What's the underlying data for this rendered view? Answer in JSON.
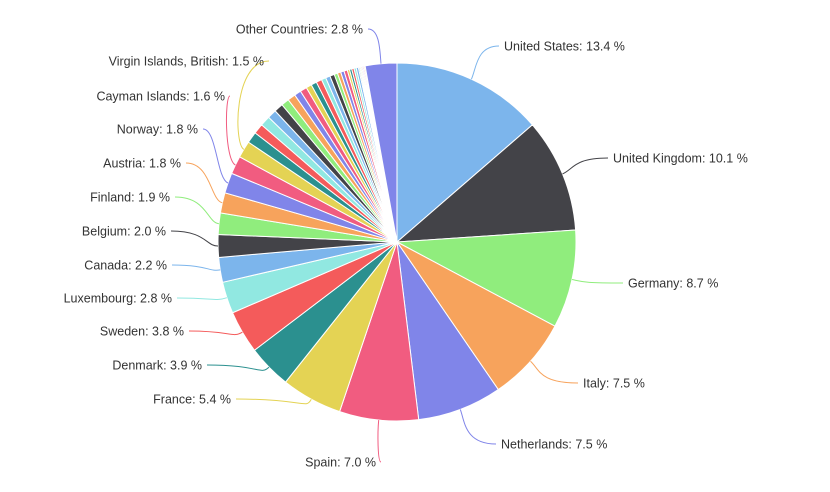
{
  "chart_data": {
    "type": "pie",
    "title": "",
    "labeled_slices": [
      {
        "name": "United States",
        "value": 13.4,
        "label": "United States: 13.4 %",
        "color": "#7cb5ec"
      },
      {
        "name": "United Kingdom",
        "value": 10.1,
        "label": "United Kingdom: 10.1 %",
        "color": "#434348"
      },
      {
        "name": "Germany",
        "value": 8.7,
        "label": "Germany: 8.7 %",
        "color": "#90ed7d"
      },
      {
        "name": "Italy",
        "value": 7.5,
        "label": "Italy: 7.5 %",
        "color": "#f7a35c"
      },
      {
        "name": "Netherlands",
        "value": 7.5,
        "label": "Netherlands: 7.5 %",
        "color": "#8085e9"
      },
      {
        "name": "Spain",
        "value": 7.0,
        "label": "Spain: 7.0 %",
        "color": "#f15c80"
      },
      {
        "name": "France",
        "value": 5.4,
        "label": "France: 5.4 %",
        "color": "#e4d354"
      },
      {
        "name": "Denmark",
        "value": 3.9,
        "label": "Denmark: 3.9 %",
        "color": "#2b908f"
      },
      {
        "name": "Sweden",
        "value": 3.8,
        "label": "Sweden: 3.8 %",
        "color": "#f45b5b"
      },
      {
        "name": "Luxembourg",
        "value": 2.8,
        "label": "Luxembourg: 2.8 %",
        "color": "#91e8e1"
      },
      {
        "name": "Canada",
        "value": 2.2,
        "label": "Canada: 2.2 %",
        "color": "#7cb5ec"
      },
      {
        "name": "Belgium",
        "value": 2.0,
        "label": "Belgium: 2.0 %",
        "color": "#434348"
      },
      {
        "name": "Finland",
        "value": 1.9,
        "label": "Finland: 1.9 %",
        "color": "#90ed7d"
      },
      {
        "name": "Austria",
        "value": 1.8,
        "label": "Austria: 1.8 %",
        "color": "#f7a35c"
      },
      {
        "name": "Norway",
        "value": 1.8,
        "label": "Norway: 1.8 %",
        "color": "#8085e9"
      },
      {
        "name": "Cayman Islands",
        "value": 1.6,
        "label": "Cayman Islands: 1.6 %",
        "color": "#f15c80"
      },
      {
        "name": "Virgin Islands, British",
        "value": 1.5,
        "label": "Virgin Islands, British: 1.5 %",
        "color": "#e4d354"
      }
    ],
    "unlabeled_small_slices": [
      1.0,
      0.9,
      0.9,
      0.8,
      0.8,
      0.7,
      0.7,
      0.6,
      0.6,
      0.5,
      0.5,
      0.5,
      0.4,
      0.4,
      0.4,
      0.3,
      0.3,
      0.3,
      0.3,
      0.2,
      0.2,
      0.2,
      0.2,
      0.2,
      0.1,
      0.1,
      0.1,
      0.1,
      0.1,
      0.1
    ],
    "last_slice": {
      "name": "Other Countries",
      "value": 2.8,
      "label": "Other Countries: 2.8 %",
      "color": "#8085e9"
    },
    "palette": [
      "#7cb5ec",
      "#434348",
      "#90ed7d",
      "#f7a35c",
      "#8085e9",
      "#f15c80",
      "#e4d354",
      "#2b908f",
      "#f45b5b",
      "#91e8e1"
    ],
    "start_angle": "12 o'clock",
    "direction": "clockwise",
    "legend": "none"
  }
}
